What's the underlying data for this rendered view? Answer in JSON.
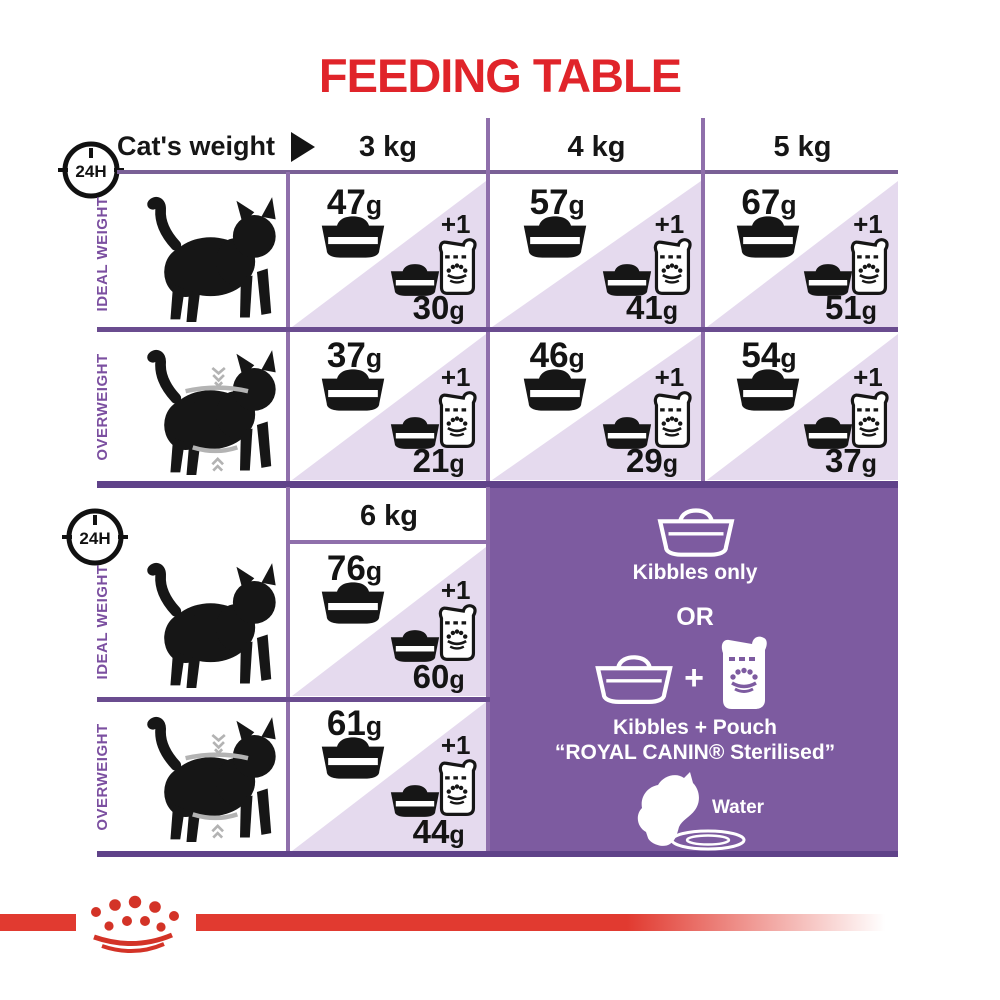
{
  "title": "FEEDING TABLE",
  "clock": {
    "label": "24H"
  },
  "header": {
    "cats_weight_label": "Cat's weight",
    "columns": [
      "3 kg",
      "4 kg",
      "5 kg"
    ],
    "column_6": "6 kg"
  },
  "row_labels": {
    "ideal": "IDEAL WEIGHT",
    "overweight": "OVERWEIGHT"
  },
  "cells": {
    "ideal_3kg": {
      "kibbles_only": "47g",
      "plus": "+1",
      "kibbles_with_pouch": "30g"
    },
    "ideal_4kg": {
      "kibbles_only": "57g",
      "plus": "+1",
      "kibbles_with_pouch": "41g"
    },
    "ideal_5kg": {
      "kibbles_only": "67g",
      "plus": "+1",
      "kibbles_with_pouch": "51g"
    },
    "overweight_3kg": {
      "kibbles_only": "37g",
      "plus": "+1",
      "kibbles_with_pouch": "21g"
    },
    "overweight_4kg": {
      "kibbles_only": "46g",
      "plus": "+1",
      "kibbles_with_pouch": "29g"
    },
    "overweight_5kg": {
      "kibbles_only": "54g",
      "plus": "+1",
      "kibbles_with_pouch": "37g"
    },
    "ideal_6kg": {
      "kibbles_only": "76g",
      "plus": "+1",
      "kibbles_with_pouch": "60g"
    },
    "overweight_6kg": {
      "kibbles_only": "61g",
      "plus": "+1",
      "kibbles_with_pouch": "44g"
    }
  },
  "legend": {
    "kibbles_only": "Kibbles only",
    "or": "OR",
    "plus": "+",
    "kibbles_pouch": "Kibbles + Pouch",
    "product": "“ROYAL CANIN® Sterilised”",
    "water": "Water"
  },
  "colors": {
    "accent_red": "#e0242a",
    "purple_box": "#7d5ba0",
    "lavender": "#e5daee",
    "label_purple": "#7b4fa0",
    "grid_purple": "#8f6fab"
  }
}
